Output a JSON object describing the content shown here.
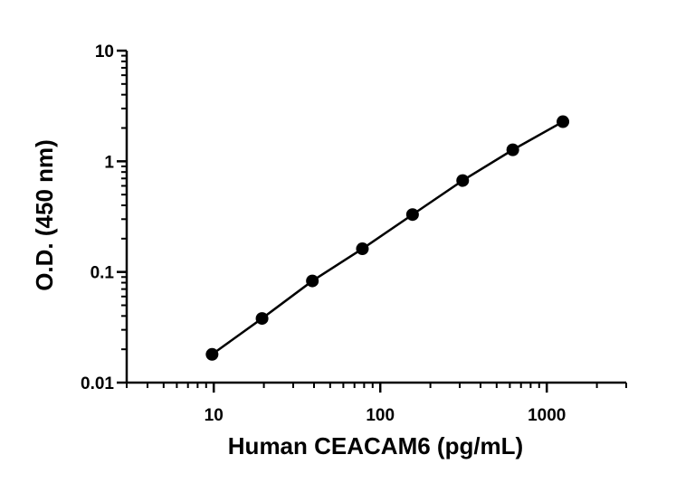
{
  "chart_data": {
    "type": "scatter",
    "title": "",
    "xlabel": "Human CEACAM6 (pg/mL)",
    "ylabel": "O.D. (450 nm)",
    "x_scale": "log",
    "y_scale": "log",
    "xlim": [
      3,
      3000
    ],
    "ylim": [
      0.01,
      10
    ],
    "x_ticks": [
      10,
      100,
      1000
    ],
    "x_tick_labels": [
      "10",
      "100",
      "1000"
    ],
    "y_ticks": [
      0.01,
      0.1,
      1,
      10
    ],
    "y_tick_labels": [
      "0.01",
      "0.1",
      "1",
      "10"
    ],
    "grid": false,
    "legend": "none",
    "fit_line": true,
    "colors": {
      "points": "#000000",
      "line": "#000000",
      "axes": "#000000"
    },
    "series": [
      {
        "x": [
          9.77,
          19.5,
          39.1,
          78.1,
          156.25,
          312.5,
          625,
          1250
        ],
        "y": [
          0.018,
          0.038,
          0.083,
          0.162,
          0.33,
          0.67,
          1.27,
          2.28
        ]
      }
    ]
  }
}
